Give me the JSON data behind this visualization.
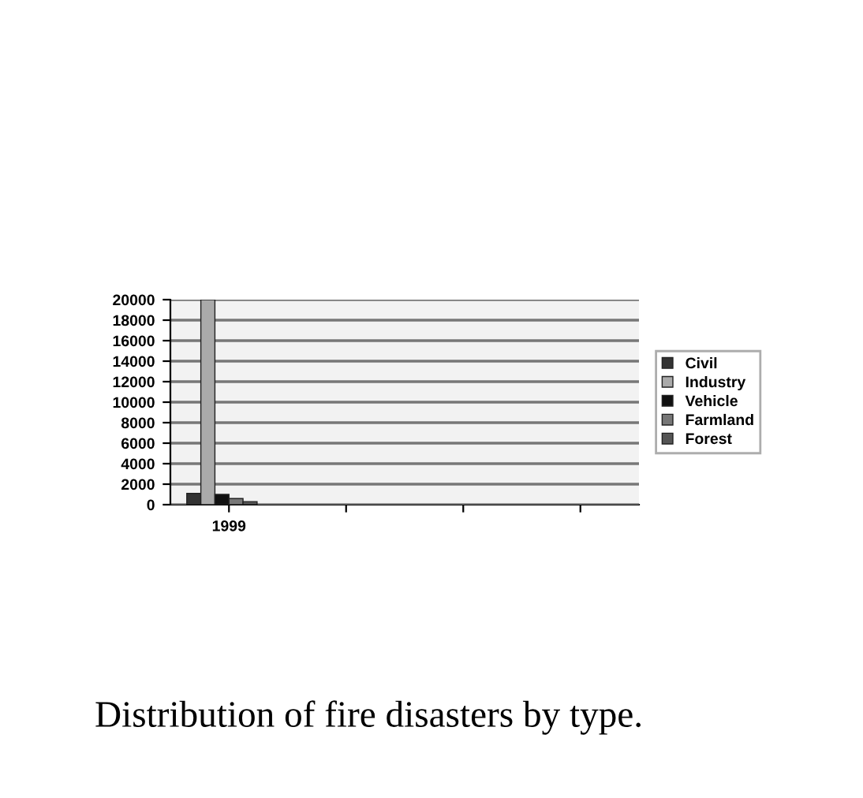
{
  "chart_data": {
    "type": "bar",
    "categories": [
      "1999",
      null,
      null,
      null
    ],
    "series": [
      {
        "name": "Civil",
        "color": "#333333",
        "values": [
          1100,
          null,
          null,
          null
        ]
      },
      {
        "name": "Industry",
        "color": "#aaaaaa",
        "values": [
          20000,
          null,
          null,
          null
        ]
      },
      {
        "name": "Vehicle",
        "color": "#111111",
        "values": [
          1000,
          null,
          null,
          null
        ]
      },
      {
        "name": "Farmland",
        "color": "#777777",
        "values": [
          600,
          null,
          null,
          null
        ]
      },
      {
        "name": "Forest",
        "color": "#555555",
        "values": [
          300,
          null,
          null,
          null
        ]
      }
    ],
    "ylim": [
      0,
      20000
    ],
    "yticks": [
      0,
      2000,
      4000,
      6000,
      8000,
      10000,
      12000,
      14000,
      16000,
      18000,
      20000
    ],
    "grid": "y",
    "legend": "right",
    "annotations": [
      "Distribution of fire disasters by type."
    ]
  }
}
